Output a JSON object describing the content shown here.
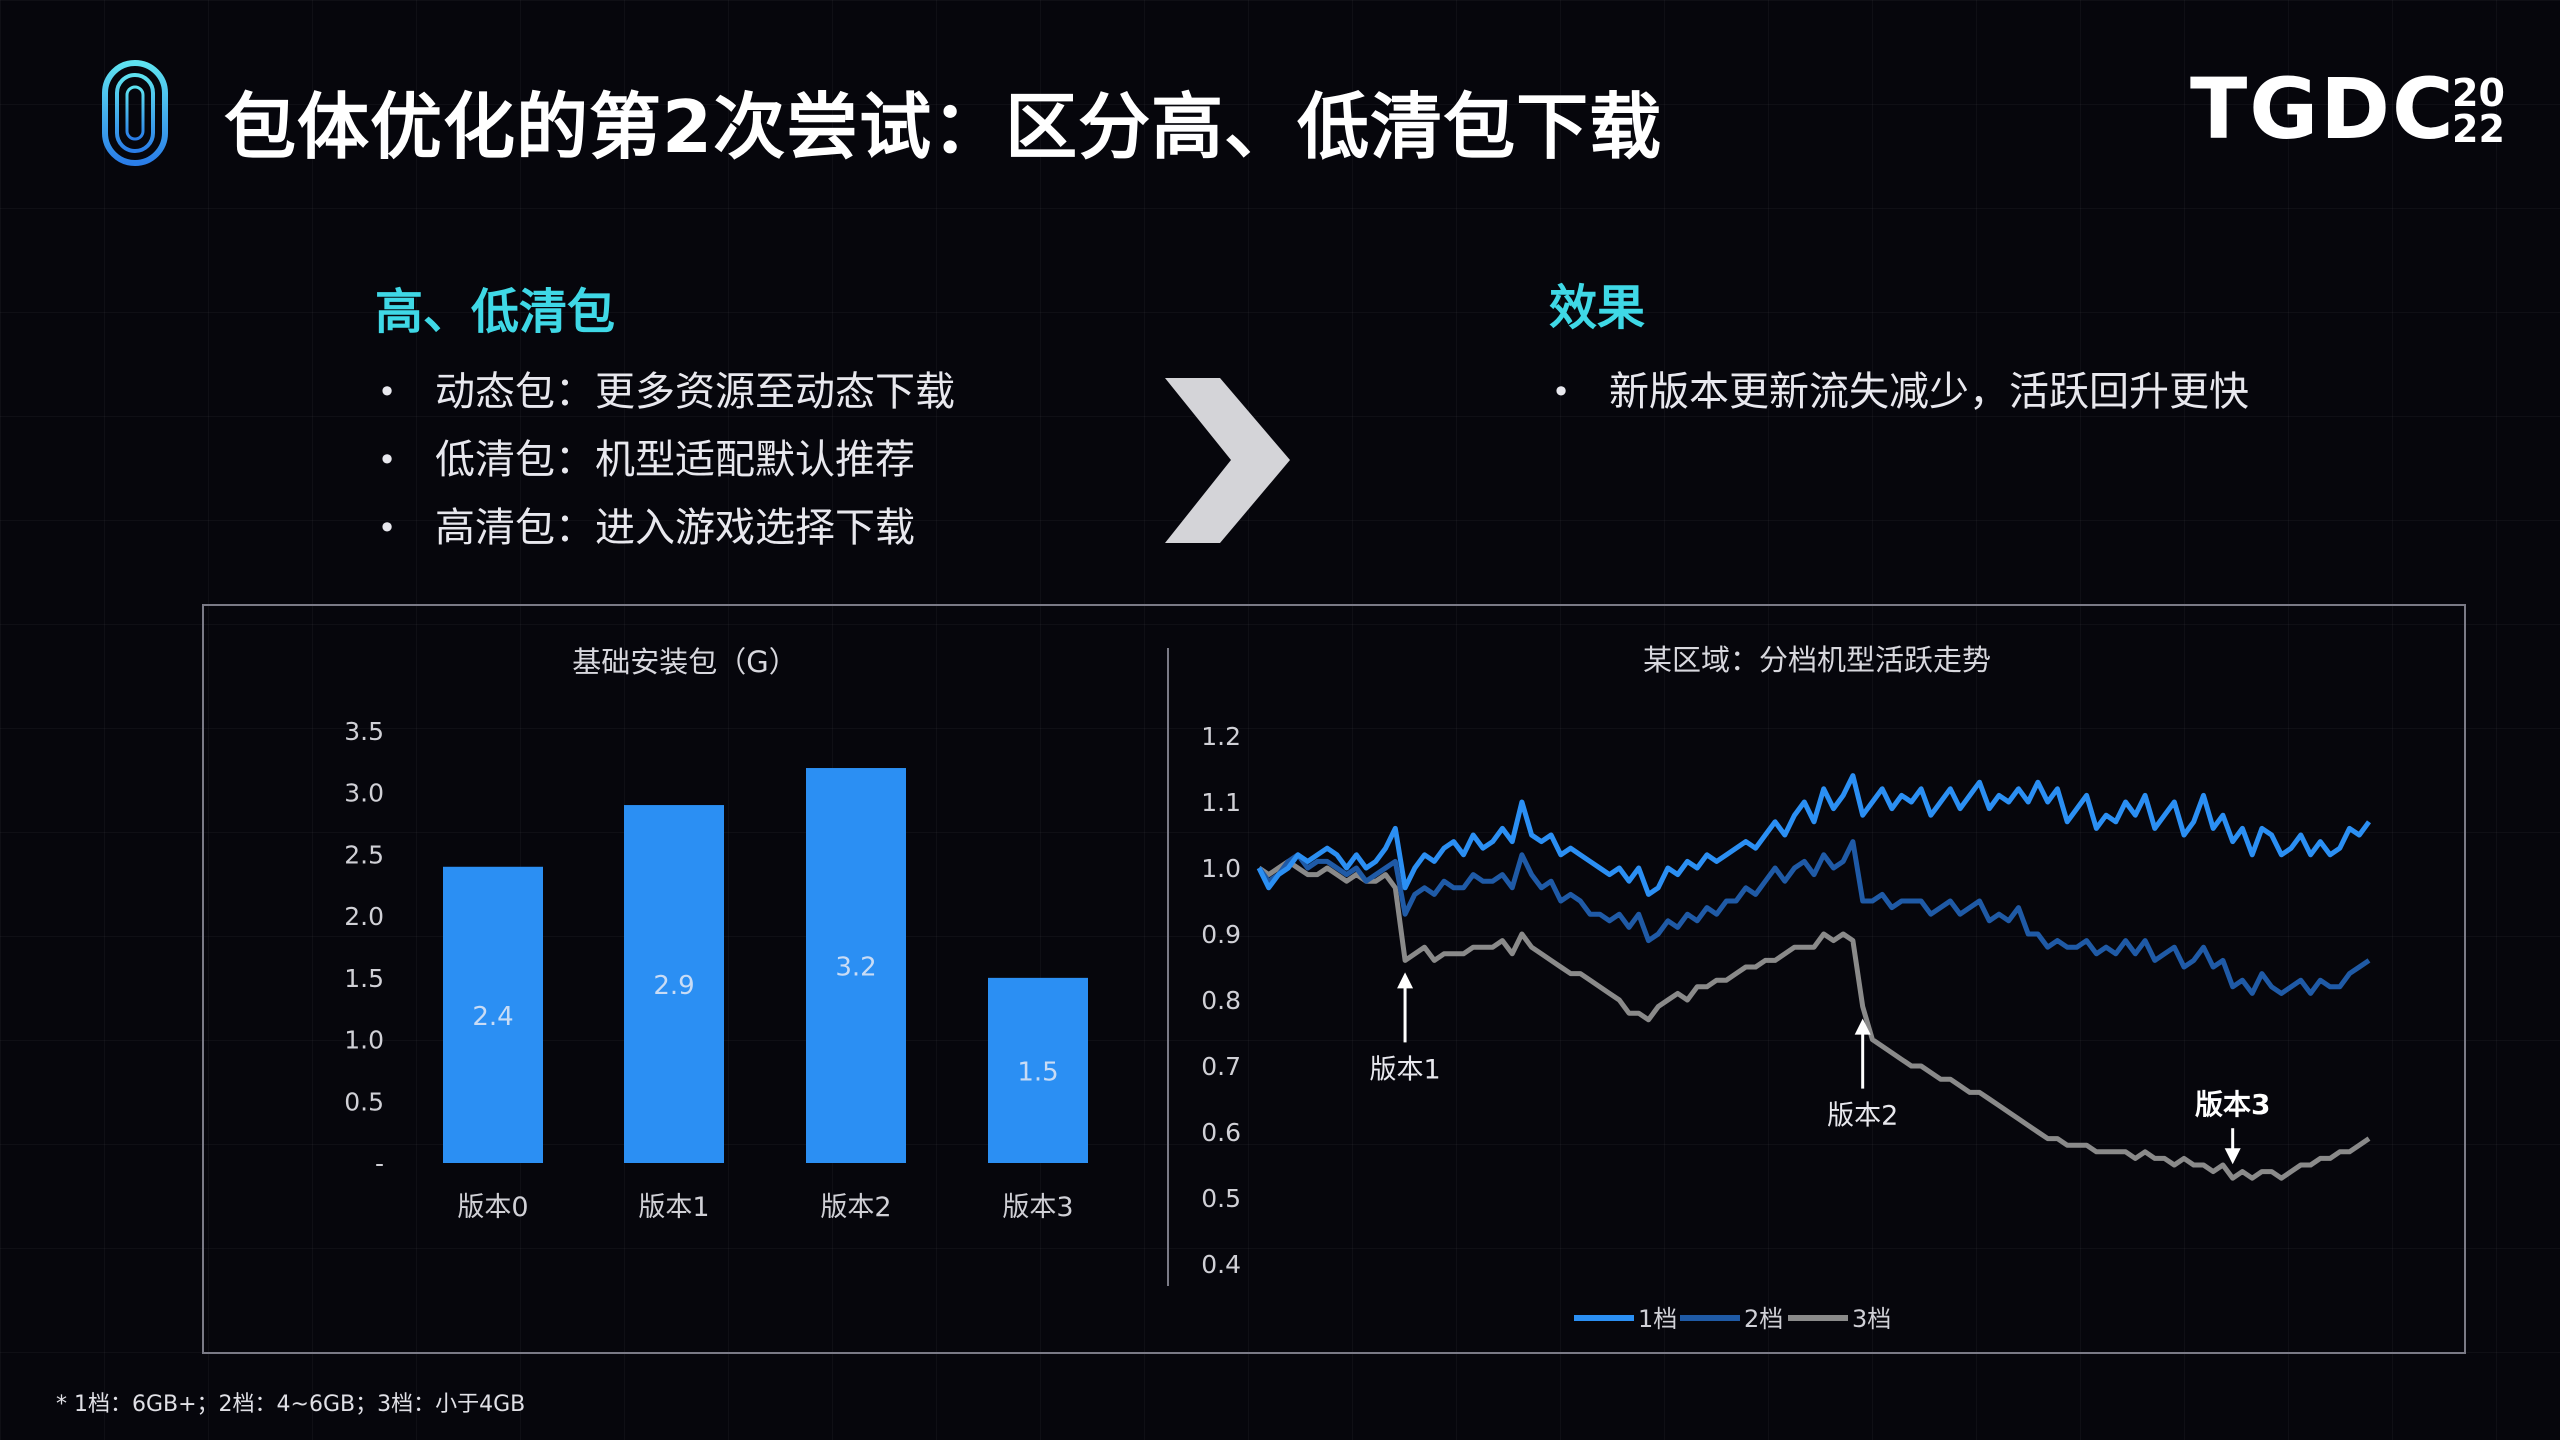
{
  "header": {
    "title": "包体优化的第2次尝试：区分高、低清包下载",
    "brand_text": "TGDC",
    "brand_year_top": "20",
    "brand_year_bottom": "22"
  },
  "left_section": {
    "title": "高、低清包",
    "bullets": [
      "动态包：更多资源至动态下载",
      "低清包：机型适配默认推荐",
      "高清包：进入游戏选择下载"
    ]
  },
  "right_section": {
    "title": "效果",
    "bullets": [
      "新版本更新流失减少，活跃回升更快"
    ]
  },
  "bullet_glyph": "•",
  "colors": {
    "accent_cyan": "#3fd8e6",
    "bar_blue": "#2b8ff3",
    "series_1": "#2b8ff3",
    "series_2": "#1f5aa6",
    "series_3": "#8a8a8a"
  },
  "chart_data": [
    {
      "type": "bar",
      "title": "基础安装包（G）",
      "categories": [
        "版本0",
        "版本1",
        "版本2",
        "版本3"
      ],
      "values": [
        2.4,
        2.9,
        3.2,
        1.5
      ],
      "data_labels": [
        "2.4",
        "2.9",
        "3.2",
        "1.5"
      ],
      "y_ticks": [
        "-",
        "0.5",
        "1.0",
        "1.5",
        "2.0",
        "2.5",
        "3.0",
        "3.5"
      ],
      "ylim": [
        0,
        3.5
      ],
      "grid": false,
      "legend": "none"
    },
    {
      "type": "line",
      "title": "某区域：分档机型活跃走势",
      "y_ticks": [
        "0.4",
        "0.5",
        "0.6",
        "0.7",
        "0.8",
        "0.9",
        "1.0",
        "1.1",
        "1.2"
      ],
      "ylim": [
        0.4,
        1.2
      ],
      "legend": "bottom",
      "series": [
        {
          "name": "1档",
          "color": "#2b8ff3",
          "values": [
            1.0,
            0.97,
            0.99,
            1.0,
            1.02,
            1.01,
            1.02,
            1.03,
            1.02,
            1.0,
            1.02,
            1.0,
            1.01,
            1.03,
            1.06,
            0.97,
            1.0,
            1.02,
            1.01,
            1.03,
            1.04,
            1.02,
            1.05,
            1.03,
            1.04,
            1.06,
            1.04,
            1.1,
            1.05,
            1.04,
            1.05,
            1.02,
            1.03,
            1.02,
            1.01,
            1.0,
            0.99,
            1.0,
            0.98,
            1.0,
            0.96,
            0.97,
            1.0,
            0.99,
            1.01,
            1.0,
            1.02,
            1.01,
            1.02,
            1.03,
            1.04,
            1.03,
            1.05,
            1.07,
            1.05,
            1.08,
            1.1,
            1.07,
            1.12,
            1.09,
            1.11,
            1.14,
            1.08,
            1.1,
            1.12,
            1.09,
            1.11,
            1.1,
            1.12,
            1.08,
            1.1,
            1.12,
            1.09,
            1.11,
            1.13,
            1.09,
            1.11,
            1.1,
            1.12,
            1.1,
            1.13,
            1.1,
            1.12,
            1.07,
            1.09,
            1.11,
            1.06,
            1.08,
            1.07,
            1.1,
            1.08,
            1.11,
            1.06,
            1.08,
            1.1,
            1.05,
            1.07,
            1.11,
            1.06,
            1.08,
            1.04,
            1.06,
            1.02,
            1.06,
            1.05,
            1.02,
            1.03,
            1.05,
            1.02,
            1.04,
            1.02,
            1.03,
            1.06,
            1.05,
            1.07
          ]
        },
        {
          "name": "2档",
          "color": "#1f5aa6",
          "values": [
            1.0,
            0.98,
            0.99,
            1.01,
            1.02,
            1.0,
            1.01,
            1.01,
            1.0,
            0.99,
            1.0,
            0.98,
            0.99,
            1.0,
            1.01,
            0.93,
            0.96,
            0.97,
            0.96,
            0.98,
            0.97,
            0.97,
            0.99,
            0.98,
            0.98,
            0.99,
            0.97,
            1.02,
            0.99,
            0.97,
            0.98,
            0.95,
            0.96,
            0.95,
            0.93,
            0.93,
            0.92,
            0.93,
            0.91,
            0.93,
            0.89,
            0.9,
            0.92,
            0.91,
            0.93,
            0.92,
            0.94,
            0.93,
            0.95,
            0.95,
            0.97,
            0.96,
            0.98,
            1.0,
            0.98,
            1.0,
            1.01,
            0.99,
            1.02,
            1.0,
            1.01,
            1.04,
            0.95,
            0.95,
            0.96,
            0.94,
            0.95,
            0.95,
            0.95,
            0.93,
            0.94,
            0.95,
            0.93,
            0.94,
            0.95,
            0.92,
            0.93,
            0.92,
            0.94,
            0.9,
            0.9,
            0.88,
            0.89,
            0.88,
            0.88,
            0.89,
            0.87,
            0.88,
            0.87,
            0.89,
            0.87,
            0.89,
            0.86,
            0.87,
            0.88,
            0.85,
            0.86,
            0.88,
            0.85,
            0.86,
            0.82,
            0.83,
            0.81,
            0.84,
            0.82,
            0.81,
            0.82,
            0.83,
            0.81,
            0.83,
            0.82,
            0.82,
            0.84,
            0.85,
            0.86
          ]
        },
        {
          "name": "3档",
          "color": "#8a8a8a",
          "values": [
            1.0,
            0.99,
            1.0,
            1.01,
            1.0,
            0.99,
            0.99,
            1.0,
            0.99,
            0.98,
            0.99,
            0.98,
            0.98,
            0.99,
            0.97,
            0.86,
            0.87,
            0.88,
            0.86,
            0.87,
            0.87,
            0.87,
            0.88,
            0.88,
            0.88,
            0.89,
            0.87,
            0.9,
            0.88,
            0.87,
            0.86,
            0.85,
            0.84,
            0.84,
            0.83,
            0.82,
            0.81,
            0.8,
            0.78,
            0.78,
            0.77,
            0.79,
            0.8,
            0.81,
            0.8,
            0.82,
            0.82,
            0.83,
            0.83,
            0.84,
            0.85,
            0.85,
            0.86,
            0.86,
            0.87,
            0.88,
            0.88,
            0.88,
            0.9,
            0.89,
            0.9,
            0.89,
            0.79,
            0.74,
            0.73,
            0.72,
            0.71,
            0.7,
            0.7,
            0.69,
            0.68,
            0.68,
            0.67,
            0.66,
            0.66,
            0.65,
            0.64,
            0.63,
            0.62,
            0.61,
            0.6,
            0.59,
            0.59,
            0.58,
            0.58,
            0.58,
            0.57,
            0.57,
            0.57,
            0.57,
            0.56,
            0.57,
            0.56,
            0.56,
            0.55,
            0.56,
            0.55,
            0.55,
            0.54,
            0.55,
            0.53,
            0.54,
            0.53,
            0.54,
            0.54,
            0.53,
            0.54,
            0.55,
            0.55,
            0.56,
            0.56,
            0.57,
            0.57,
            0.58,
            0.59
          ]
        }
      ],
      "annotations": [
        {
          "label": "版本1",
          "index": 15,
          "bold": false
        },
        {
          "label": "版本2",
          "index": 62,
          "bold": false
        },
        {
          "label": "版本3",
          "index": 100,
          "bold": true
        }
      ]
    }
  ],
  "footnote": "* 1档：6GB+；2档：4~6GB；3档：小于4GB"
}
